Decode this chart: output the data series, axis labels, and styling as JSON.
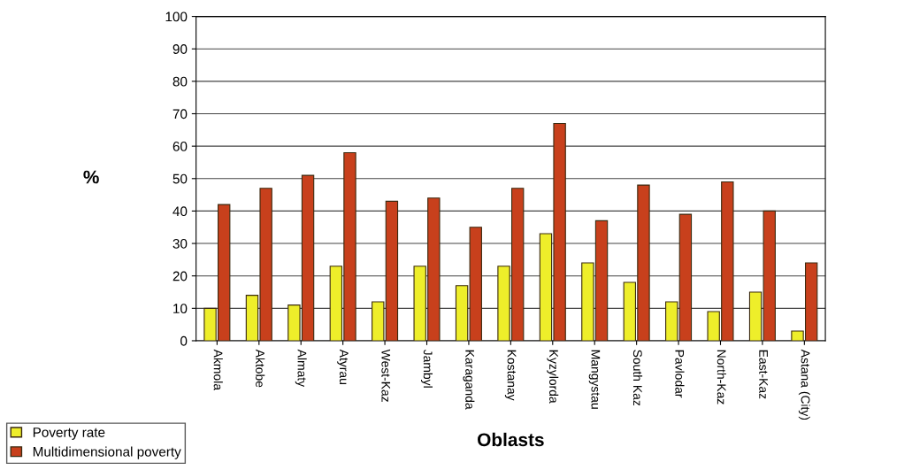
{
  "chart_data": {
    "type": "bar",
    "xlabel": "Oblasts",
    "ylabel": "%",
    "categories": [
      "Akmola",
      "Aktobe",
      "Almaty",
      "Atyrau",
      "West-Kaz",
      "Jambyl",
      "Karaganda",
      "Kostanay",
      "Kyzylorda",
      "Mangystau",
      "South Kaz",
      "Pavlodar",
      "North-Kaz",
      "East-Kaz",
      "Astana (City)"
    ],
    "series": [
      {
        "name": "Poverty rate",
        "color": "#eeee2a",
        "values": [
          10,
          14,
          11,
          23,
          12,
          23,
          17,
          23,
          33,
          24,
          18,
          12,
          9,
          15,
          3
        ]
      },
      {
        "name": "Multidimensional poverty",
        "color": "#c8401c",
        "values": [
          42,
          47,
          51,
          58,
          43,
          44,
          35,
          47,
          67,
          37,
          48,
          39,
          49,
          40,
          24
        ]
      }
    ],
    "ylim": [
      0,
      100
    ],
    "yticks": [
      0,
      10,
      20,
      30,
      40,
      50,
      60,
      70,
      80,
      90,
      100
    ],
    "grid": "y",
    "legend": "bottom left"
  }
}
